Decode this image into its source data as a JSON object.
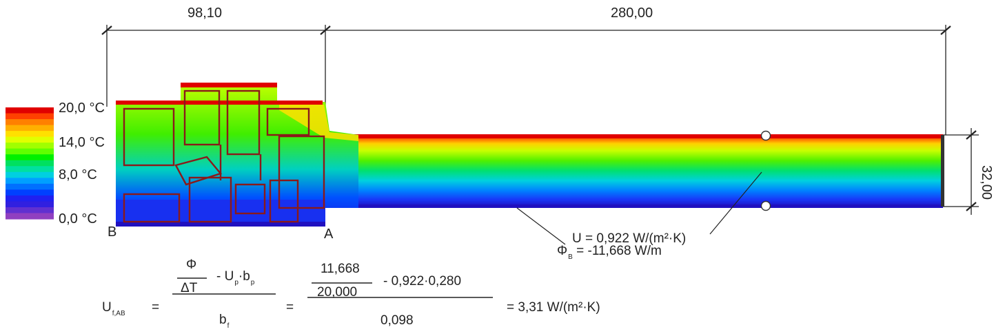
{
  "dimensions": {
    "frame_width": "98,10",
    "panel_width": "280,00",
    "panel_thickness": "32,00"
  },
  "scale": {
    "labels": [
      "20,0 °C",
      "14,0 °C",
      "8,0 °C",
      "0,0 °C"
    ],
    "colors": [
      "#e00000",
      "#ff4000",
      "#ff8000",
      "#ffb000",
      "#ffe000",
      "#e0ff00",
      "#a0ff00",
      "#60ff00",
      "#00f000",
      "#00e060",
      "#00e0a0",
      "#00d0e0",
      "#00a0ff",
      "#0070ff",
      "#0040ff",
      "#2020f0",
      "#3020e0",
      "#6030d0",
      "#9040c0"
    ]
  },
  "points": {
    "left": "B",
    "right": "A"
  },
  "annotations": {
    "u_value": "U = 0,922 W/(m²·K)",
    "phi_symbol": "Φ",
    "phi_sub": "B",
    "phi_rest": "= -11,668 W/m"
  },
  "equation": {
    "lhs_symbol": "U",
    "lhs_sub": "f,AB",
    "equals": "=",
    "numerator_top": "Φ",
    "numerator_bottom": "ΔT",
    "minus_term_symbol": "- U",
    "minus_term_sub1": "p",
    "minus_term_mid": "·b",
    "minus_term_sub2": "p",
    "denominator_symbol": "b",
    "denominator_sub": "f",
    "value_top": "11,668",
    "value_bottom": "20,000",
    "value_minus": "- 0,922·0,280",
    "value_denominator": "0,098",
    "result": "= 3,31 W/(m²·K)"
  }
}
